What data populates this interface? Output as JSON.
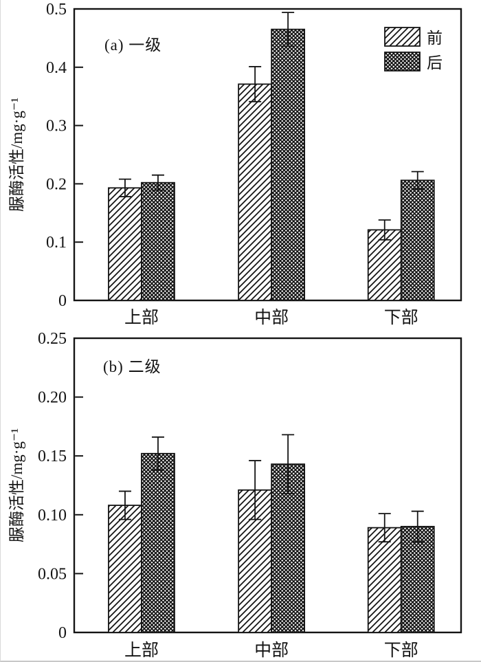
{
  "page": {
    "background": "#ffffff",
    "ink": "#141414"
  },
  "chart_data": [
    {
      "type": "bar",
      "panel": "a",
      "title": "(a) 一级",
      "ylabel": "脲酶活性/mg·g⁻¹",
      "xlabel": "",
      "categories": [
        "上部",
        "中部",
        "下部"
      ],
      "series": [
        {
          "name": "前",
          "hatch": "diagonal",
          "values": [
            0.193,
            0.371,
            0.121
          ],
          "errors": [
            0.015,
            0.03,
            0.017
          ]
        },
        {
          "name": "后",
          "hatch": "crosshatch",
          "values": [
            0.202,
            0.465,
            0.206
          ],
          "errors": [
            0.013,
            0.029,
            0.015
          ]
        }
      ],
      "ylim": [
        0,
        0.5
      ],
      "ytick_step": 0.1,
      "ytick_labels": [
        "0",
        "0.1",
        "0.2",
        "0.3",
        "0.4",
        "0.5"
      ],
      "grid": false,
      "legend_position": "top-right"
    },
    {
      "type": "bar",
      "panel": "b",
      "title": "(b) 二级",
      "ylabel": "脲酶活性/mg·g⁻¹",
      "xlabel": "",
      "categories": [
        "上部",
        "中部",
        "下部"
      ],
      "series": [
        {
          "name": "前",
          "hatch": "diagonal",
          "values": [
            0.108,
            0.121,
            0.089
          ],
          "errors": [
            0.012,
            0.025,
            0.012
          ]
        },
        {
          "name": "后",
          "hatch": "crosshatch",
          "values": [
            0.152,
            0.143,
            0.09
          ],
          "errors": [
            0.014,
            0.025,
            0.013
          ]
        }
      ],
      "ylim": [
        0,
        0.25
      ],
      "ytick_step": 0.05,
      "ytick_labels": [
        "0",
        "0.05",
        "0.10",
        "0.15",
        "0.20",
        "0.25"
      ],
      "grid": false,
      "legend_position": "none"
    }
  ]
}
